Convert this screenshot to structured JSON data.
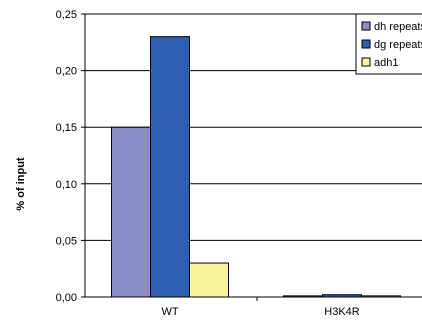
{
  "chart_data": {
    "type": "bar",
    "title": "",
    "xlabel": "",
    "ylabel": "% of input",
    "ylim": [
      0,
      0.25
    ],
    "yticks": [
      "0,00",
      "0,05",
      "0,10",
      "0,15",
      "0,20",
      "0,25"
    ],
    "categories": [
      "WT",
      "H3K4R"
    ],
    "series": [
      {
        "name": "dh repeats",
        "values": [
          0.15,
          0.001
        ],
        "color": "#8b8ec9"
      },
      {
        "name": "dg repeats",
        "values": [
          0.23,
          0.002
        ],
        "color": "#2d5fb0"
      },
      {
        "name": "adh1",
        "values": [
          0.03,
          0.001
        ],
        "color": "#f7f59c"
      }
    ],
    "grid": true,
    "legend_position": "top-right"
  }
}
